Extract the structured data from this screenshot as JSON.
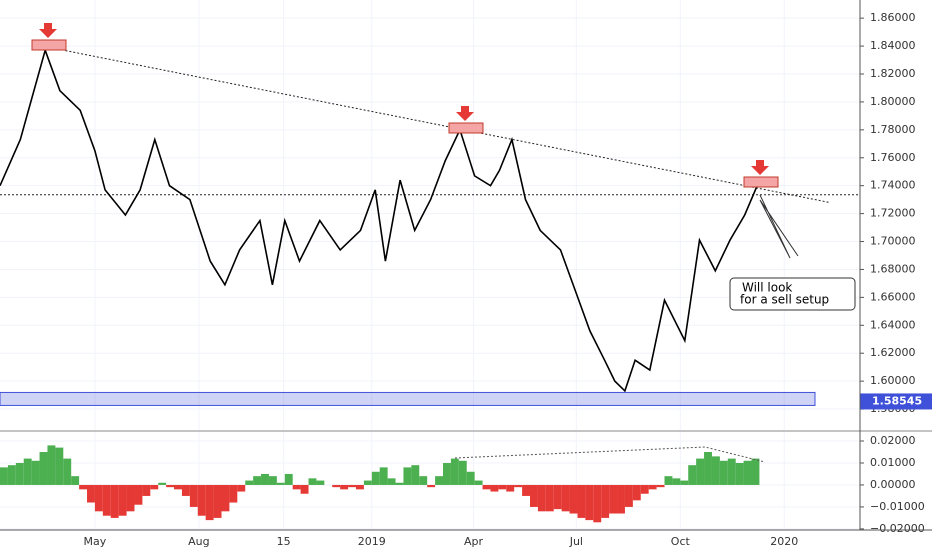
{
  "chart_data": [
    {
      "type": "line",
      "color": "#000000",
      "x": [
        -23,
        -5,
        17,
        30,
        48,
        61,
        70,
        88,
        101,
        114,
        127,
        145,
        163,
        176,
        189,
        207,
        218,
        229,
        242,
        260,
        278,
        296,
        309,
        318,
        331,
        344,
        358,
        371,
        384,
        397,
        411,
        419,
        430,
        442,
        455,
        473,
        486,
        499,
        512,
        521,
        530,
        539,
        552,
        565,
        583,
        596,
        610,
        623,
        636,
        647
      ],
      "series": [
        {
          "name": "Price",
          "color": "#000000",
          "values": [
            1.74,
            1.773,
            1.837,
            1.808,
            1.794,
            1.765,
            1.737,
            1.719,
            1.737,
            1.773,
            1.74,
            1.73,
            1.686,
            1.669,
            1.694,
            1.715,
            1.669,
            1.715,
            1.686,
            1.715,
            1.694,
            1.708,
            1.737,
            1.686,
            1.744,
            1.708,
            1.73,
            1.758,
            1.78,
            1.747,
            1.74,
            1.751,
            1.773,
            1.73,
            1.708,
            1.694,
            1.665,
            1.636,
            1.615,
            1.6,
            1.593,
            1.615,
            1.608,
            1.658,
            1.629,
            1.701,
            1.679,
            1.701,
            1.719,
            1.74
          ]
        }
      ],
      "xlim": [
        -23,
        738
      ],
      "xticks": [
        {
          "value": 61,
          "label": "May"
        },
        {
          "value": 153,
          "label": "Aug"
        },
        {
          "value": 228,
          "label": "15"
        },
        {
          "value": 306,
          "label": "2019"
        },
        {
          "value": 396,
          "label": "Apr"
        },
        {
          "value": 487,
          "label": "Jul"
        },
        {
          "value": 579,
          "label": "Oct"
        },
        {
          "value": 671,
          "label": "2020"
        }
      ],
      "ylim": [
        1.565,
        1.873
      ],
      "yticks": [
        {
          "value": 1.58,
          "label": "1.58000"
        },
        {
          "value": 1.6,
          "label": "1.60000"
        },
        {
          "value": 1.62,
          "label": "1.62000"
        },
        {
          "value": 1.64,
          "label": "1.64000"
        },
        {
          "value": 1.66,
          "label": "1.66000"
        },
        {
          "value": 1.68,
          "label": "1.68000"
        },
        {
          "value": 1.7,
          "label": "1.70000"
        },
        {
          "value": 1.72,
          "label": "1.72000"
        },
        {
          "value": 1.74,
          "label": "1.74000"
        },
        {
          "value": 1.76,
          "label": "1.76000"
        },
        {
          "value": 1.78,
          "label": "1.78000"
        },
        {
          "value": 1.8,
          "label": "1.80000"
        },
        {
          "value": 1.82,
          "label": "1.82000"
        },
        {
          "value": 1.84,
          "label": "1.84000"
        },
        {
          "value": 1.86,
          "label": "1.86000"
        }
      ],
      "grid": true,
      "reference_level": 1.7335,
      "zone": {
        "value": 1.58545,
        "label": "1.58545",
        "low": 1.5826,
        "high": 1.5919,
        "color": "#3f51d9"
      },
      "trendline": {
        "x": [
          21,
          711
        ],
        "y": [
          1.839,
          1.728
        ]
      },
      "annotation": [
        "Will look",
        "for a sell setup"
      ]
    },
    {
      "type": "bar",
      "up_color": "#4caf50",
      "down_color": "#e53935",
      "x": [
        -23,
        -16,
        -9,
        -2,
        5,
        12,
        19,
        26,
        33,
        40,
        47,
        54,
        61,
        68,
        75,
        82,
        89,
        96,
        103,
        110,
        117,
        124,
        131,
        138,
        145,
        152,
        159,
        166,
        173,
        180,
        187,
        194,
        201,
        208,
        215,
        222,
        229,
        236,
        243,
        250,
        257,
        264,
        271,
        278,
        285,
        292,
        299,
        306,
        313,
        320,
        327,
        334,
        341,
        348,
        355,
        362,
        369,
        376,
        383,
        390,
        397,
        404,
        411,
        418,
        425,
        432,
        439,
        446,
        453,
        460,
        467,
        474,
        481,
        488,
        495,
        502,
        509,
        516,
        523,
        530,
        537,
        544,
        551,
        558,
        565,
        572,
        579,
        586,
        593,
        600,
        607,
        614,
        621,
        628,
        635,
        642
      ],
      "values": [
        0.008,
        0.009,
        0.01,
        0.012,
        0.011,
        0.015,
        0.018,
        0.017,
        0.012,
        0.004,
        -0.002,
        -0.008,
        -0.012,
        -0.014,
        -0.015,
        -0.014,
        -0.012,
        -0.009,
        -0.005,
        -0.002,
        0.001,
        -0.001,
        -0.002,
        -0.005,
        -0.01,
        -0.014,
        -0.016,
        -0.015,
        -0.012,
        -0.008,
        -0.003,
        0.002,
        0.004,
        0.005,
        0.004,
        0.001,
        0.005,
        -0.002,
        -0.004,
        0.003,
        0.002,
        0.0,
        -0.001,
        -0.002,
        -0.001,
        -0.002,
        0.002,
        0.006,
        0.008,
        0.003,
        0.001,
        0.008,
        0.009,
        0.004,
        -0.001,
        0.004,
        0.01,
        0.012,
        0.011,
        0.006,
        0.002,
        -0.002,
        -0.003,
        -0.002,
        -0.003,
        -0.001,
        -0.005,
        -0.01,
        -0.012,
        -0.012,
        -0.011,
        -0.012,
        -0.013,
        -0.015,
        -0.016,
        -0.017,
        -0.015,
        -0.013,
        -0.013,
        -0.01,
        -0.007,
        -0.004,
        -0.002,
        -0.001,
        0.004,
        0.003,
        0.002,
        0.009,
        0.012,
        0.015,
        0.013,
        0.011,
        0.012,
        0.01,
        0.011,
        0.012
      ],
      "xlim": [
        -23,
        738
      ],
      "ylim": [
        -0.0205,
        0.0241
      ],
      "yticks": [
        {
          "value": -0.02,
          "label": "−0.02000"
        },
        {
          "value": -0.01,
          "label": "−0.01000"
        },
        {
          "value": 0,
          "label": "0.00000"
        },
        {
          "value": 0.01,
          "label": "0.01000"
        },
        {
          "value": 0.02,
          "label": "0.02000"
        }
      ]
    }
  ]
}
